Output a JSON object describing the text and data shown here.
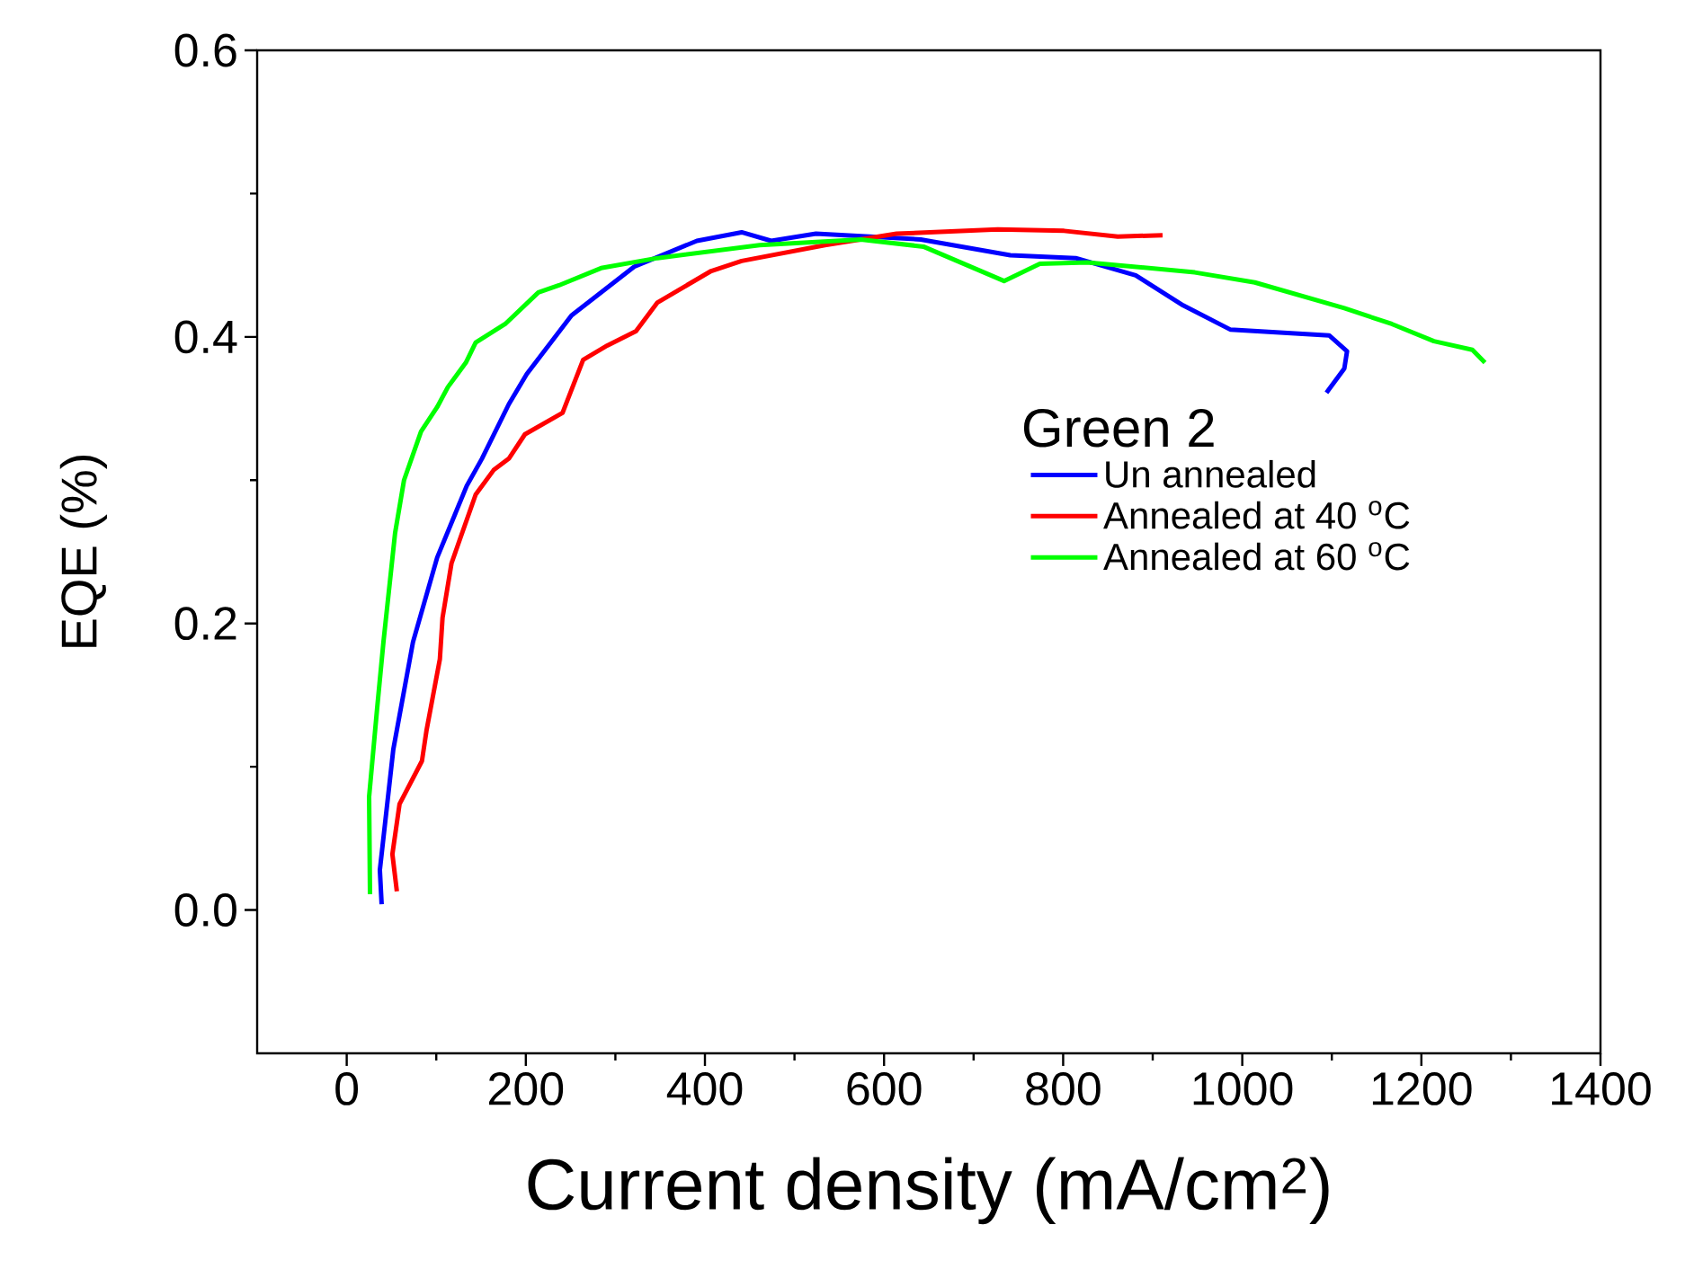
{
  "chart_data": {
    "type": "line",
    "xlabel": "Current density (mA/cm$^{2}$)",
    "ylabel": "EQE (%)",
    "legend_title": "Green 2",
    "xlim": [
      -100,
      1400
    ],
    "xticks": [
      0,
      200,
      400,
      600,
      800,
      1000,
      1200,
      1400
    ],
    "ylim": [
      -0.1,
      0.6
    ],
    "yticks": [
      {
        "value": 0,
        "label": "0.0"
      },
      0.2,
      0.4,
      0.6
    ],
    "legend": "right",
    "grid": false,
    "marker": "none",
    "line_style": "solid",
    "series": [
      {
        "name": "Un annealed",
        "color": "#0000ff",
        "x": [
          39,
          37,
          52,
          74,
          101,
          134,
          151,
          181,
          201,
          251,
          321,
          391,
          441,
          474,
          524,
          641,
          741,
          814,
          881,
          934,
          987,
          1097,
          1117,
          1114,
          1094
        ],
        "values": [
          0.004,
          0.028,
          0.112,
          0.187,
          0.246,
          0.296,
          0.315,
          0.353,
          0.374,
          0.415,
          0.449,
          0.467,
          0.473,
          0.467,
          0.472,
          0.468,
          0.457,
          0.455,
          0.443,
          0.422,
          0.405,
          0.401,
          0.39,
          0.378,
          0.361
        ]
      },
      {
        "name": "Annealed at 40 $^{o}$C",
        "color": "#ff0000",
        "x": [
          56,
          51,
          59,
          84,
          89,
          104,
          107,
          117,
          144,
          164,
          181,
          199,
          241,
          264,
          291,
          323,
          347,
          407,
          441,
          534,
          614,
          727,
          801,
          861,
          911
        ],
        "values": [
          0.013,
          0.039,
          0.074,
          0.104,
          0.125,
          0.175,
          0.204,
          0.242,
          0.29,
          0.307,
          0.315,
          0.332,
          0.347,
          0.384,
          0.394,
          0.404,
          0.424,
          0.446,
          0.453,
          0.464,
          0.472,
          0.475,
          0.474,
          0.47,
          0.471
        ]
      },
      {
        "name": "Annealed at 60 $^{o}$C",
        "color": "#00ff00",
        "x": [
          26,
          25,
          34,
          41,
          54,
          64,
          83,
          101,
          113,
          133,
          144,
          177,
          214,
          237,
          284,
          347,
          461,
          574,
          644,
          734,
          774,
          827,
          947,
          1014,
          1114,
          1167,
          1214,
          1257,
          1271
        ],
        "values": [
          0.011,
          0.079,
          0.141,
          0.187,
          0.263,
          0.3,
          0.334,
          0.351,
          0.365,
          0.382,
          0.396,
          0.409,
          0.431,
          0.436,
          0.448,
          0.455,
          0.464,
          0.468,
          0.463,
          0.439,
          0.451,
          0.452,
          0.445,
          0.438,
          0.42,
          0.409,
          0.397,
          0.391,
          0.382
        ]
      }
    ]
  }
}
